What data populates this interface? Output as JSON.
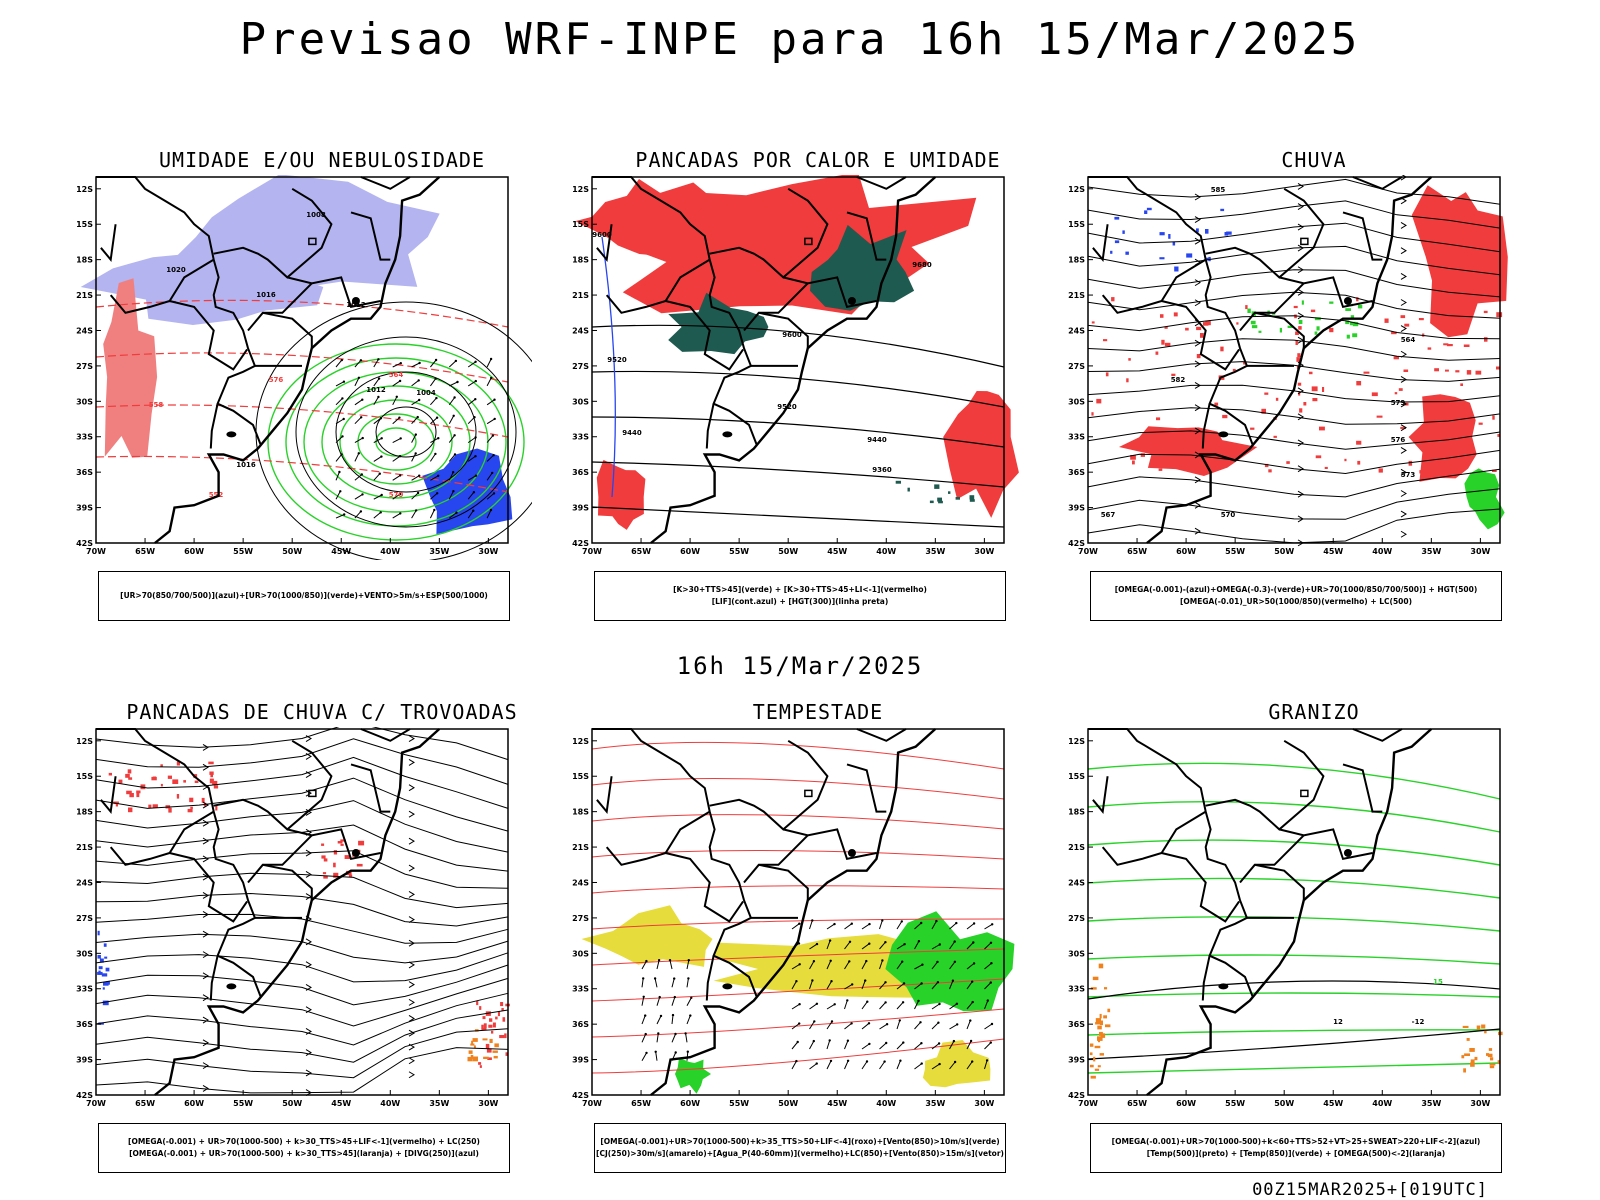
{
  "title": "Previsao WRF-INPE  para 16h 15/Mar/2025",
  "middle_label": "16h 15/Mar/2025",
  "footer": "00Z15MAR2025+[019UTC]",
  "axes": {
    "lat_ticks": [
      "12S",
      "15S",
      "18S",
      "21S",
      "24S",
      "27S",
      "30S",
      "33S",
      "36S",
      "39S",
      "42S"
    ],
    "lon_ticks": [
      "70W",
      "65W",
      "60W",
      "55W",
      "50W",
      "45W",
      "40W",
      "35W",
      "30W"
    ]
  },
  "panels": [
    {
      "title": "UMIDADE E/OU NEBULOSIDADE",
      "legend": [
        "[UR>70(850/700/500)](azul)+[UR>70(1000/850)](verde)+VENTO>5m/s+ESP(500/1000)"
      ],
      "labels": [
        "1008",
        "1012",
        "1016",
        "1020",
        "1004",
        "1012",
        "1016",
        "570",
        "576",
        "564",
        "558",
        "552"
      ]
    },
    {
      "title": "PANCADAS POR CALOR E UMIDADE",
      "legend": [
        "[K>30+TTS>45](verde) + [K>30+TTS>45+LI<-1](vermelho)",
        "[LIF](cont.azul) + [HGT(300)](linha preta)"
      ],
      "labels": [
        "9680",
        "9600",
        "9520",
        "9440",
        "9360",
        "9600",
        "9520",
        "9440"
      ]
    },
    {
      "title": "CHUVA",
      "legend": [
        "[OMEGA(-0.001)-(azul)+OMEGA(-0.3)-(verde)+UR>70(1000/850/700/500)] + HGT(500)",
        "[OMEGA(-0.01)_UR>50(1000/850)(vermelho) + LC(500)"
      ],
      "labels": [
        "585",
        "582",
        "579",
        "576",
        "573",
        "570",
        "567",
        "564"
      ]
    },
    {
      "title": "PANCADAS DE CHUVA C/ TROVOADAS",
      "legend": [
        "[OMEGA(-0.001) + UR>70(1000-500) + k>30_TTS>45+LIF<-1](vermelho) + LC(250)",
        "[OMEGA(-0.001) + UR>70(1000-500) + k>30_TTS>45](laranja) + [DIVG(250)](azul)"
      ],
      "labels": []
    },
    {
      "title": "TEMPESTADE",
      "legend": [
        "[OMEGA(-0.001)+UR>70(1000-500)+k>35_TTS>50+LIF<-4](roxo)+[Vento(850)>10m/s](verde)",
        "[CJ(250)>30m/s](amarelo)+[Agua_P(40-60mm)](vermelho)+LC(850)+[Vento(850)>15m/s](vetor)"
      ],
      "labels": []
    },
    {
      "title": "GRANIZO",
      "legend": [
        "[OMEGA(-0.001)+UR>70(1000-500)+k<60+TTS>52+VT>25+SWEAT>220+LIF<-2](azul)",
        "[Temp(500)](preto) + [Temp(850)](verde) + [OMEGA(500)<-2](laranja)"
      ],
      "labels": [
        "15",
        "12",
        "-12"
      ]
    }
  ],
  "colors": {
    "red": "#f03c3c",
    "green": "#28d228",
    "blue": "#2846f0",
    "lavender": "#b4b4f0",
    "teal": "#1e5a50",
    "yellow": "#e6dc3c",
    "orange": "#f0821e"
  }
}
